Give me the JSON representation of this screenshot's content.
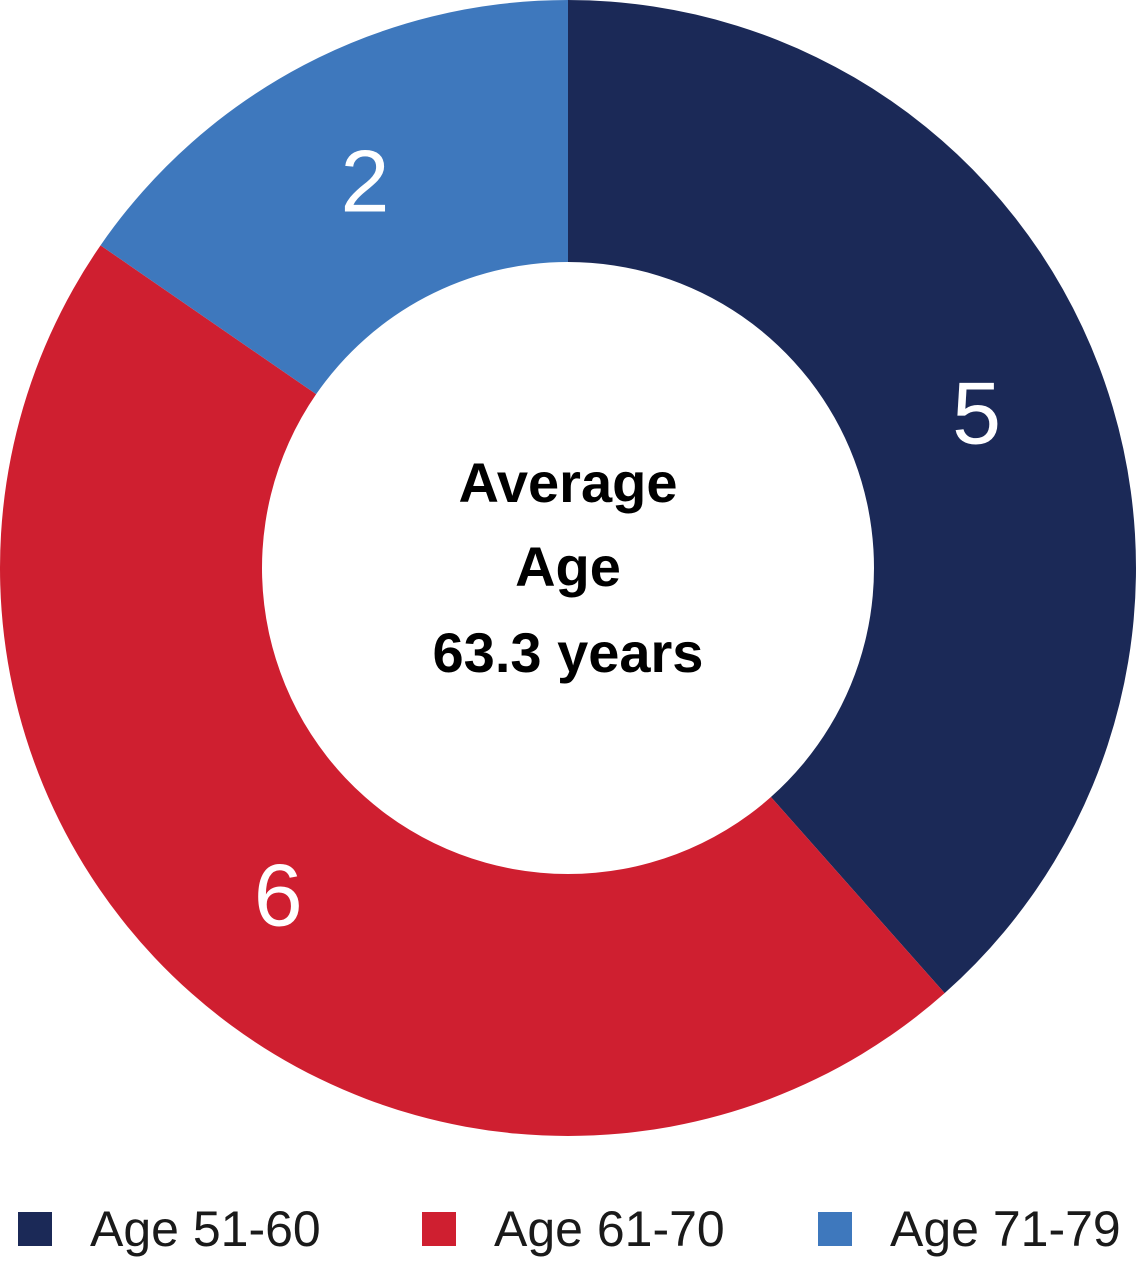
{
  "chart_data": {
    "type": "pie",
    "variant": "donut",
    "categories": [
      "Age 51-60",
      "Age 61-70",
      "Age 71-79"
    ],
    "values": [
      5,
      6,
      2
    ],
    "colors": [
      "#1b2957",
      "#cf1f30",
      "#3e78bd"
    ],
    "data_labels": [
      "5",
      "6",
      "2"
    ],
    "center_text": [
      "Average",
      "Age",
      "63.3 years"
    ],
    "legend": {
      "placement": "bottom",
      "entries": [
        "Age 51-60",
        "Age 61-70",
        "Age 71-79"
      ]
    },
    "start_angle": "12 o'clock",
    "direction": "clockwise"
  }
}
